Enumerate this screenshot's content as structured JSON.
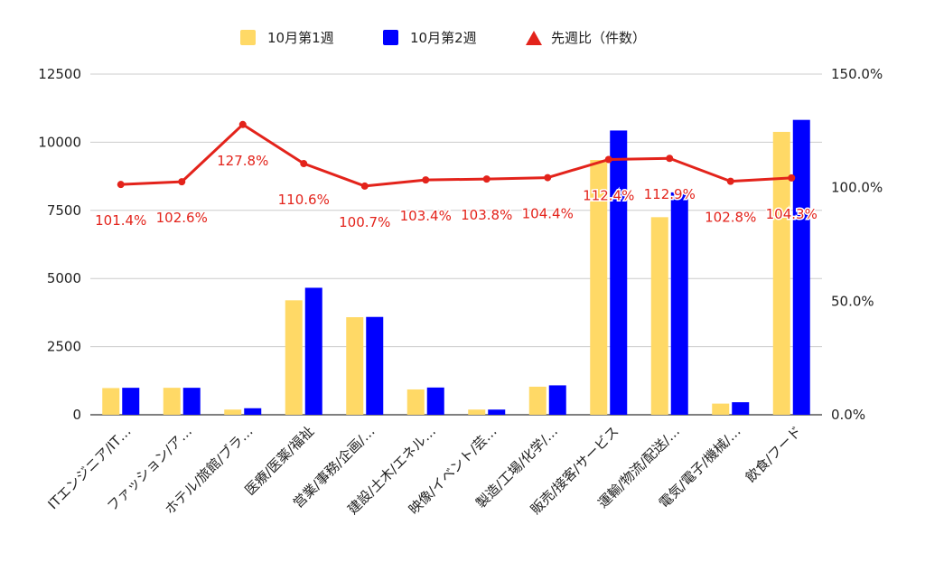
{
  "chart_data": {
    "type": "bar",
    "categories": [
      "ITエンジニア/IT…",
      "ファッション/ア…",
      "ホテル/旅館/ブラ…",
      "医療/医薬/福祉",
      "営業/事務/企画/…",
      "建設/土木/エネル…",
      "映像/イベント/芸…",
      "製造/工場/化学/…",
      "販売/接客/サービス",
      "運輸/物流/配送/…",
      "電気/電子/機械/…",
      "飲食/フード"
    ],
    "series": [
      {
        "name": "10月第1週",
        "axis": "left",
        "color": "#ffd966",
        "values": [
          980,
          990,
          190,
          4200,
          3580,
          930,
          190,
          1030,
          9350,
          7250,
          410,
          10380
        ]
      },
      {
        "name": "10月第2週",
        "axis": "left",
        "color": "#0000ff",
        "values": [
          990,
          990,
          240,
          4660,
          3590,
          1000,
          190,
          1080,
          10430,
          8160,
          460,
          10820
        ]
      },
      {
        "name": "先週比（件数）",
        "axis": "right",
        "type": "line",
        "color": "#e3231b",
        "values": [
          101.4,
          102.6,
          127.8,
          110.6,
          100.7,
          103.4,
          103.8,
          104.4,
          112.4,
          112.9,
          102.8,
          104.3
        ],
        "labels": [
          "101.4%",
          "102.6%",
          "127.8%",
          "110.6%",
          "100.7%",
          "103.4%",
          "103.8%",
          "104.4%",
          "112.4%",
          "112.9%",
          "102.8%",
          "104.3%"
        ]
      }
    ],
    "y_left": {
      "min": 0,
      "max": 12500,
      "ticks": [
        "0",
        "2500",
        "5000",
        "7500",
        "10000",
        "12500"
      ]
    },
    "y_right": {
      "min": 0,
      "max": 150,
      "ticks": [
        "0.0%",
        "50.0%",
        "100.0%",
        "150.0%"
      ]
    },
    "grid": true,
    "legend_position": "top"
  }
}
